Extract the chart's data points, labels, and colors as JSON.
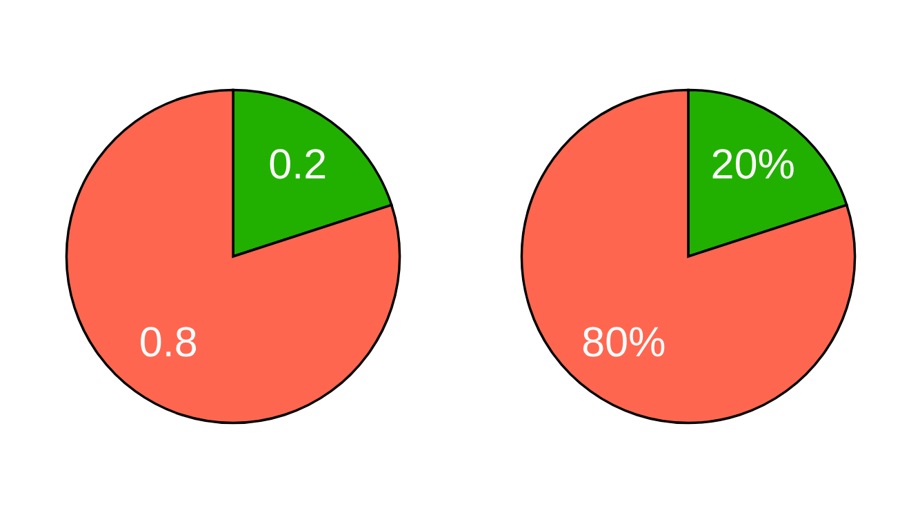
{
  "chart_data": [
    {
      "type": "pie",
      "categories": [
        null,
        null
      ],
      "values": [
        0.2,
        0.8
      ],
      "colors": [
        "#21b000",
        "#ff6650"
      ],
      "data_labels": true
    },
    {
      "type": "pie",
      "categories": [
        null,
        null
      ],
      "values": [
        20,
        80
      ],
      "colors": [
        "#21b000",
        "#ff6650"
      ],
      "value_labels": [
        "20%",
        "80%"
      ]
    }
  ]
}
